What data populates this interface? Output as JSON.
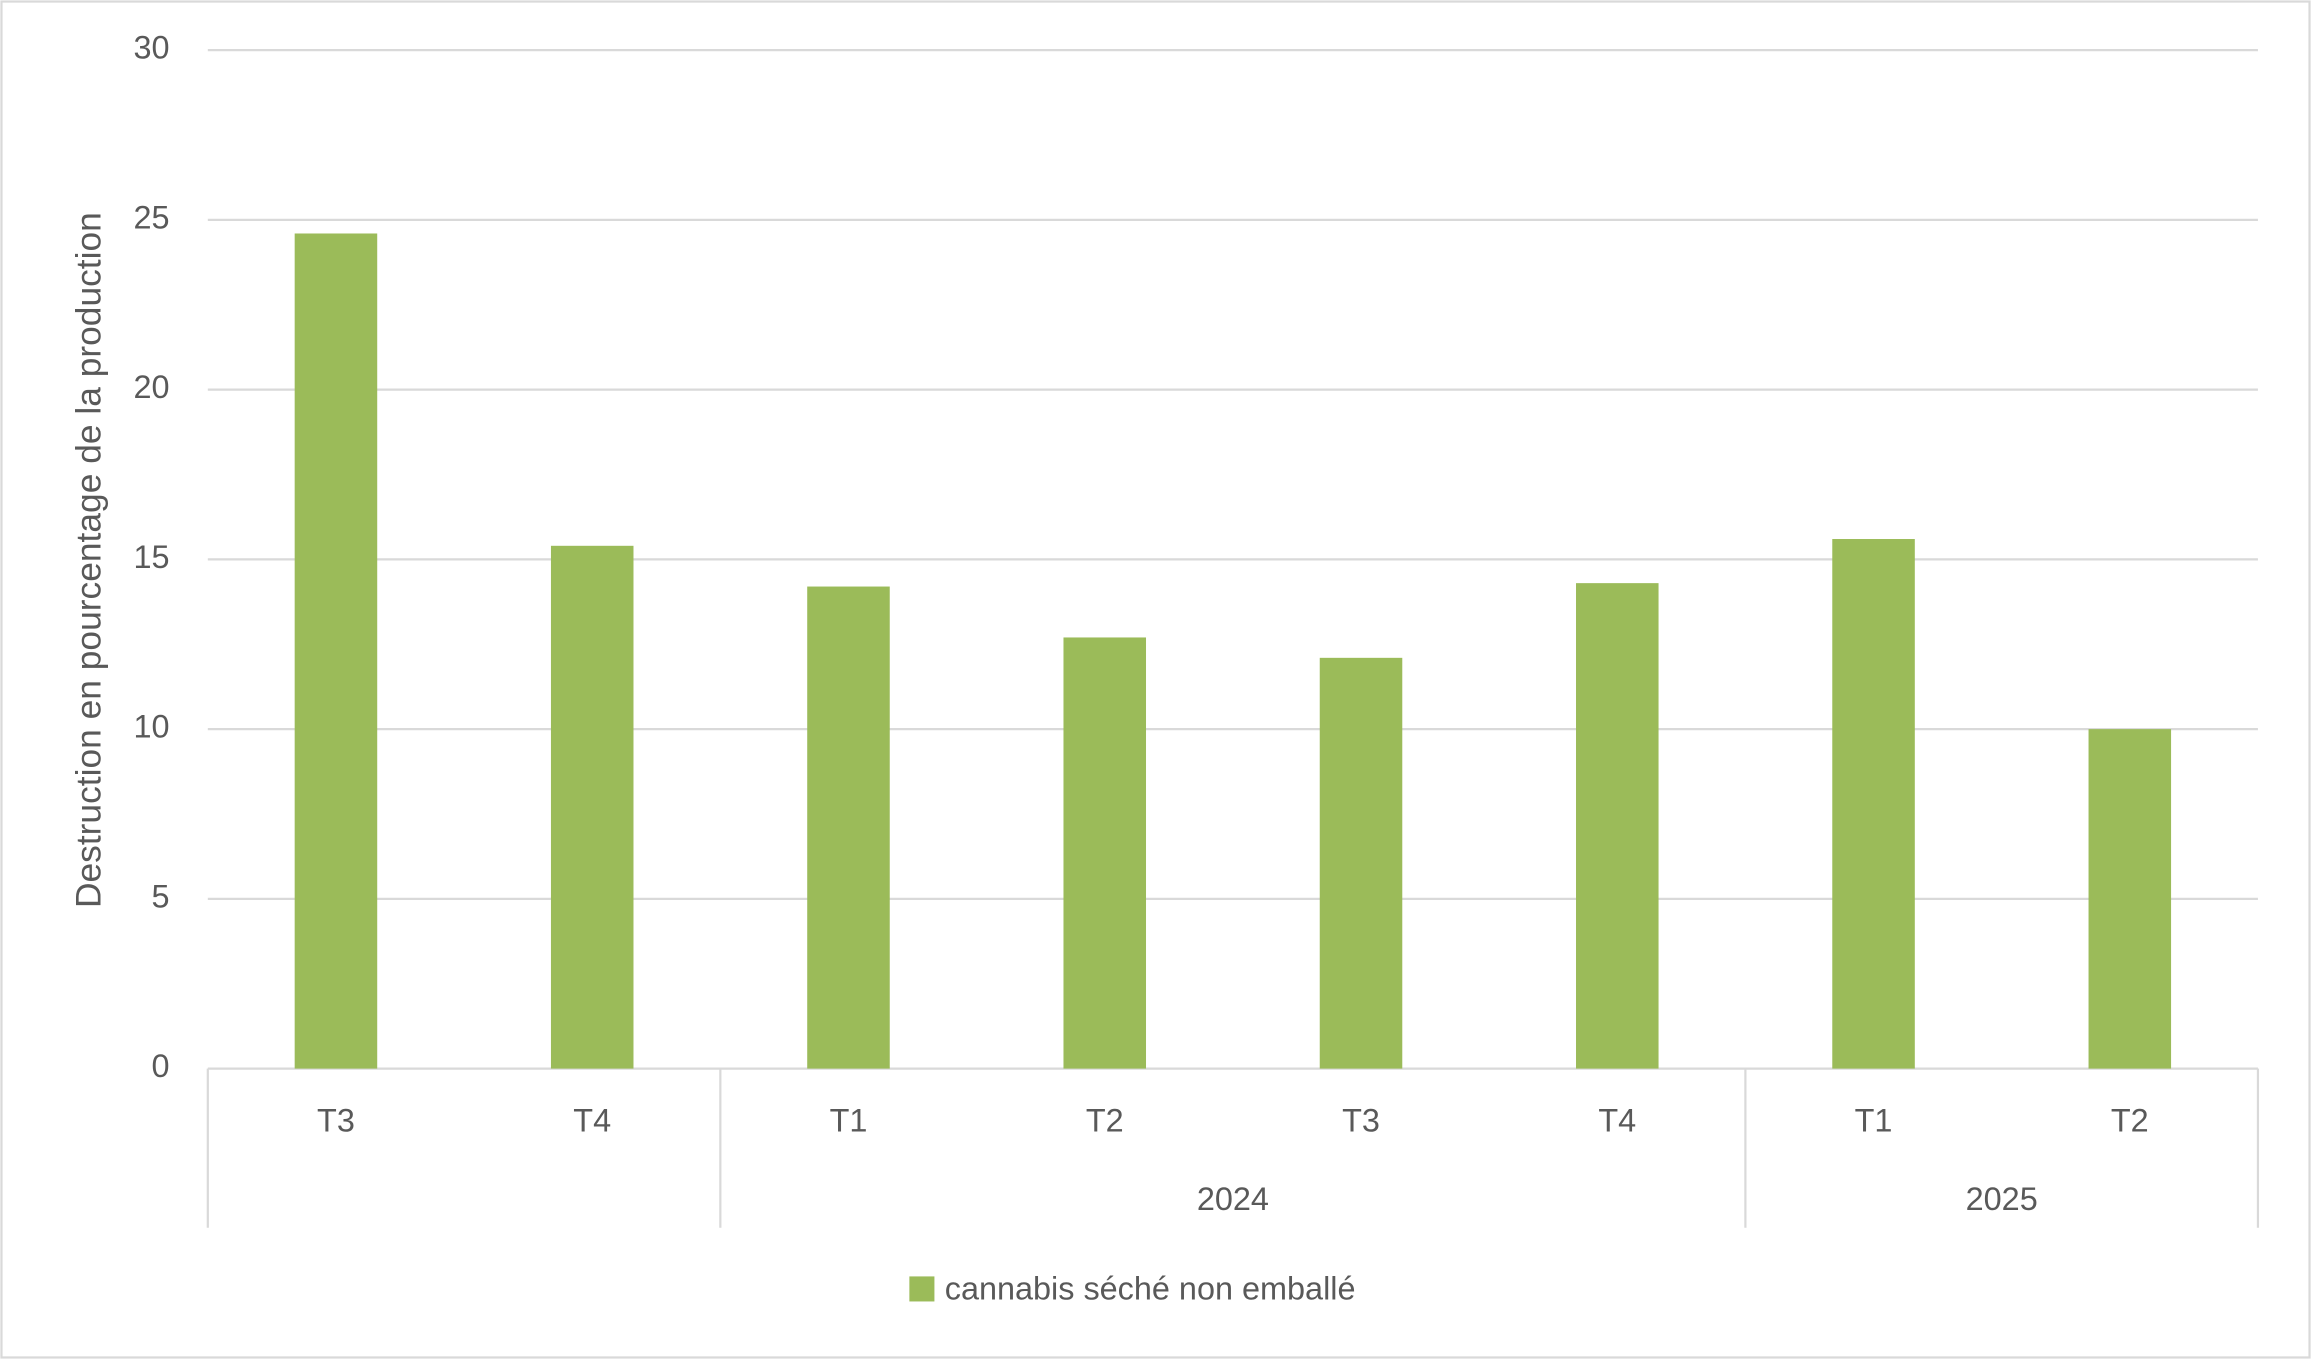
{
  "chart_data": {
    "type": "bar",
    "y_label": "Destruction en pourcentage de la production",
    "categories": [
      "T3",
      "T4",
      "T1",
      "T2",
      "T3",
      "T4",
      "T1",
      "T2"
    ],
    "groups": [
      null,
      null,
      "2024",
      "2024",
      "2024",
      "2024",
      "2025",
      "2025"
    ],
    "series": [
      {
        "name": "cannabis séché non emballé",
        "color": "#9bbb59",
        "values": [
          24.6,
          15.4,
          14.2,
          12.7,
          12.1,
          14.3,
          15.6,
          10.0
        ]
      }
    ],
    "ylim": [
      0,
      30
    ],
    "yticks": [
      0,
      5,
      10,
      15,
      20,
      25,
      30
    ],
    "grid": true,
    "legend": "bottom"
  }
}
